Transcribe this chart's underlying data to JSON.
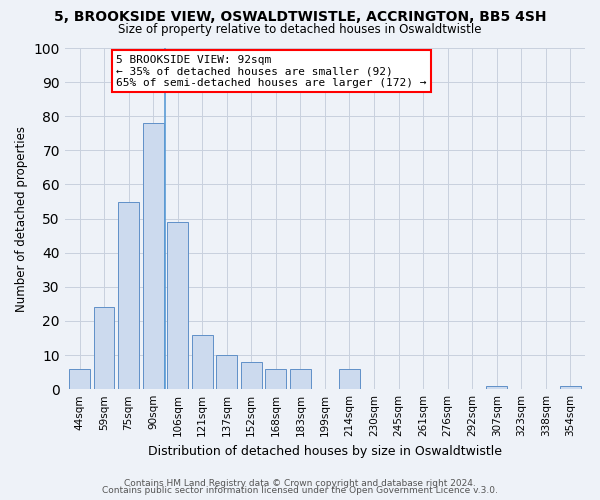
{
  "title": "5, BROOKSIDE VIEW, OSWALDTWISTLE, ACCRINGTON, BB5 4SH",
  "subtitle": "Size of property relative to detached houses in Oswaldtwistle",
  "xlabel": "Distribution of detached houses by size in Oswaldtwistle",
  "ylabel": "Number of detached properties",
  "bar_color": "#ccdaee",
  "bar_edge_color": "#6090c8",
  "annotation_line_color": "#5b9bd5",
  "bin_labels": [
    "44sqm",
    "59sqm",
    "75sqm",
    "90sqm",
    "106sqm",
    "121sqm",
    "137sqm",
    "152sqm",
    "168sqm",
    "183sqm",
    "199sqm",
    "214sqm",
    "230sqm",
    "245sqm",
    "261sqm",
    "276sqm",
    "292sqm",
    "307sqm",
    "323sqm",
    "338sqm",
    "354sqm"
  ],
  "values": [
    6,
    24,
    55,
    78,
    49,
    16,
    10,
    8,
    6,
    6,
    0,
    6,
    0,
    0,
    0,
    0,
    0,
    1,
    0,
    0,
    1
  ],
  "ylim": [
    0,
    100
  ],
  "yticks": [
    0,
    10,
    20,
    30,
    40,
    50,
    60,
    70,
    80,
    90,
    100
  ],
  "property_size": "92sqm",
  "property_bin_index": 3,
  "annotation_text_line1": "5 BROOKSIDE VIEW: 92sqm",
  "annotation_text_line2": "← 35% of detached houses are smaller (92)",
  "annotation_text_line3": "65% of semi-detached houses are larger (172) →",
  "footer_line1": "Contains HM Land Registry data © Crown copyright and database right 2024.",
  "footer_line2": "Contains public sector information licensed under the Open Government Licence v.3.0.",
  "background_color": "#eef2f8",
  "plot_bg_color": "#eef2f8",
  "grid_color": "#c8d0de"
}
